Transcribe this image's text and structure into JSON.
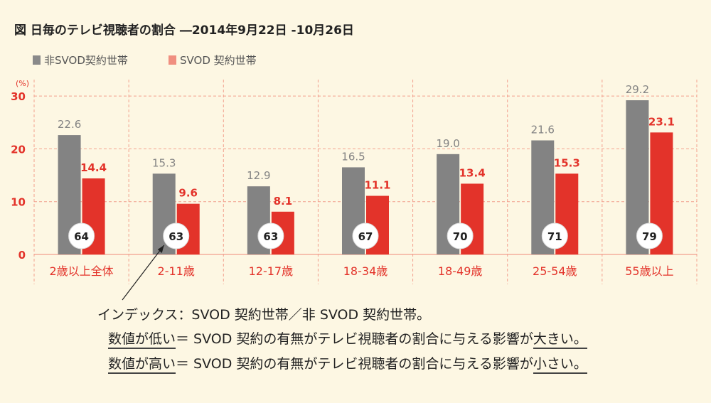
{
  "title": "図 日毎のテレビ視聴者の割合 ―2014年9月22日 -10月26日",
  "legend": {
    "non_svod": "非SVOD契約世帯",
    "svod": "SVOD 契約世帯"
  },
  "colors": {
    "non_svod": "#838383",
    "svod": "#e3332a",
    "non_svod_legend": "#8a8a8a",
    "svod_legend": "#f08f80",
    "grid": "#f2a08e",
    "accent": "#e3332a",
    "background": "#fdf7e3"
  },
  "chart_data": {
    "type": "bar",
    "y_unit": "(%)",
    "ylim": [
      0,
      30
    ],
    "yticks": [
      0,
      10,
      20,
      30
    ],
    "categories": [
      "2歳以上全体",
      "2-11歳",
      "12-17歳",
      "18-34歳",
      "18-49歳",
      "25-54歳",
      "55歳以上"
    ],
    "series": [
      {
        "name": "非SVOD契約世帯",
        "values": [
          22.6,
          15.3,
          12.9,
          16.5,
          19.0,
          21.6,
          29.2
        ],
        "labels": [
          "22.6",
          "15.3",
          "12.9",
          "16.5",
          "19.0",
          "21.6",
          "29.2"
        ]
      },
      {
        "name": "SVOD 契約世帯",
        "values": [
          14.4,
          9.6,
          8.1,
          11.1,
          13.4,
          15.3,
          23.1
        ],
        "labels": [
          "14.4",
          "9.6",
          "8.1",
          "11.1",
          "13.4",
          "15.3",
          "23.1"
        ]
      }
    ],
    "index_values": [
      64,
      63,
      63,
      67,
      70,
      71,
      79
    ],
    "grid": true
  },
  "notes": {
    "line1": "インデックス：SVOD 契約世帯／非 SVOD 契約世帯。",
    "line2_a": "数値が低い",
    "line2_b": "＝ SVOD 契約の有無がテレビ視聴者の割合に与える影響が",
    "line2_c": "大きい。",
    "line3_a": "数値が高い",
    "line3_b": "＝ SVOD 契約の有無がテレビ視聴者の割合に与える影響が",
    "line3_c": "小さい。"
  }
}
